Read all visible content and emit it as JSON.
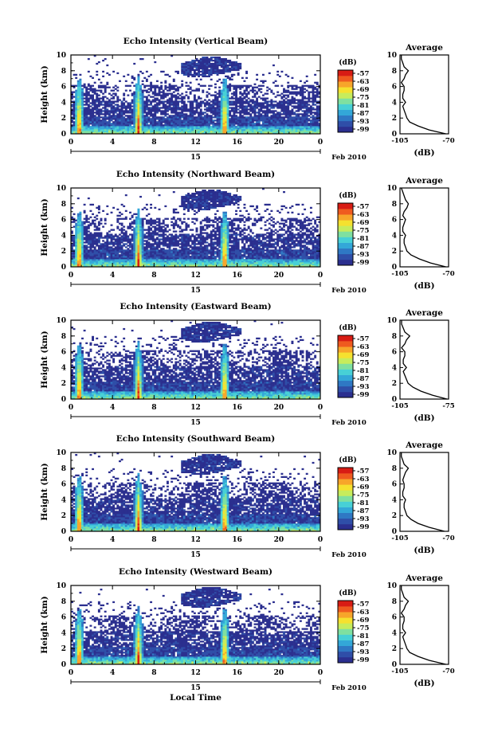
{
  "figure": {
    "xlabel": "Local Time"
  },
  "colorbar": {
    "unit": "(dB)",
    "ticks": [
      "-57",
      "-63",
      "-69",
      "-75",
      "-81",
      "-87",
      "-93",
      "-99"
    ]
  },
  "colormap": [
    "#2b2f8f",
    "#2f4ea8",
    "#2f78c4",
    "#33a7d8",
    "#47d0d6",
    "#7fe0a0",
    "#c7ec5c",
    "#f5e12f",
    "#f7a52a",
    "#ef5a1f",
    "#d81c14"
  ],
  "chart_data": [
    {
      "type": "heatmap",
      "title": "Echo Intensity (Vertical Beam)",
      "ylabel": "Height (km)",
      "xlim": [
        0,
        24
      ],
      "ylim": [
        0,
        10
      ],
      "xticks": [
        "0",
        "4",
        "8",
        "12",
        "16",
        "20",
        "0"
      ],
      "yticks": [
        "0",
        "2",
        "4",
        "6",
        "8",
        "10"
      ],
      "date_day": "15",
      "date_month": "Feb 2010",
      "colorbar_label": "(dB)",
      "color_range_db": [
        -99,
        -57
      ],
      "spikes_local_time": [
        0.8,
        6.5,
        14.8
      ],
      "average": {
        "title": "Average",
        "xlabel": "(dB)",
        "xticks": [
          "-105",
          "-70"
        ],
        "xlim": [
          -105,
          -70
        ],
        "heights_km": [
          0,
          0.5,
          1,
          1.5,
          2,
          2.5,
          3,
          3.5,
          4,
          4.5,
          5,
          5.5,
          6,
          6.5,
          7,
          7.5,
          8,
          8.5,
          9,
          9.5,
          10
        ],
        "db": [
          -72,
          -84,
          -92,
          -98,
          -100,
          -101,
          -102,
          -103,
          -101,
          -103,
          -103,
          -102,
          -102,
          -104,
          -102,
          -101,
          -99,
          -102,
          -103,
          -104,
          -104
        ]
      }
    },
    {
      "type": "heatmap",
      "title": "Echo Intensity (Northward Beam)",
      "ylabel": "Height (km)",
      "xlim": [
        0,
        24
      ],
      "ylim": [
        0,
        10
      ],
      "xticks": [
        "0",
        "4",
        "8",
        "12",
        "16",
        "20",
        "0"
      ],
      "yticks": [
        "0",
        "2",
        "4",
        "6",
        "8",
        "10"
      ],
      "date_day": "15",
      "date_month": "Feb 2010",
      "colorbar_label": "(dB)",
      "color_range_db": [
        -99,
        -57
      ],
      "spikes_local_time": [
        0.8,
        6.5,
        14.8
      ],
      "average": {
        "title": "Average",
        "xlabel": "(dB)",
        "xticks": [
          "-105",
          "-70"
        ],
        "xlim": [
          -105,
          -70
        ],
        "heights_km": [
          0,
          0.5,
          1,
          1.5,
          2,
          2.5,
          3,
          3.5,
          4,
          4.5,
          5,
          5.5,
          6,
          6.5,
          7,
          7.5,
          8,
          8.5,
          9,
          9.5,
          10
        ],
        "db": [
          -72,
          -83,
          -91,
          -97,
          -100,
          -101,
          -102,
          -102,
          -101,
          -103,
          -103,
          -102,
          -101,
          -103,
          -102,
          -100,
          -99,
          -101,
          -102,
          -103,
          -104
        ]
      }
    },
    {
      "type": "heatmap",
      "title": "Echo Intensity (Eastward Beam)",
      "ylabel": "Height (km)",
      "xlim": [
        0,
        24
      ],
      "ylim": [
        0,
        10
      ],
      "xticks": [
        "0",
        "4",
        "8",
        "12",
        "16",
        "20",
        "0"
      ],
      "yticks": [
        "0",
        "2",
        "4",
        "6",
        "8",
        "10"
      ],
      "date_day": "15",
      "date_month": "Feb 2010",
      "colorbar_label": "(dB)",
      "color_range_db": [
        -99,
        -57
      ],
      "spikes_local_time": [
        0.8,
        6.5,
        14.8
      ],
      "average": {
        "title": "Average",
        "xlabel": "(dB)",
        "xticks": [
          "-105",
          "-75"
        ],
        "xlim": [
          -105,
          -75
        ],
        "heights_km": [
          0,
          0.5,
          1,
          1.5,
          2,
          2.5,
          3,
          3.5,
          4,
          4.5,
          5,
          5.5,
          6,
          6.5,
          7,
          7.5,
          8,
          8.5,
          9,
          9.5,
          10
        ],
        "db": [
          -76,
          -85,
          -92,
          -97,
          -100,
          -101,
          -102,
          -103,
          -101,
          -103,
          -103,
          -102,
          -102,
          -104,
          -102,
          -101,
          -99,
          -102,
          -103,
          -104,
          -104
        ]
      }
    },
    {
      "type": "heatmap",
      "title": "Echo Intensity (Southward Beam)",
      "ylabel": "Height (km)",
      "xlim": [
        0,
        24
      ],
      "ylim": [
        0,
        10
      ],
      "xticks": [
        "0",
        "4",
        "8",
        "12",
        "16",
        "20",
        "0"
      ],
      "yticks": [
        "0",
        "2",
        "4",
        "6",
        "8",
        "10"
      ],
      "date_day": "15",
      "date_month": "Feb 2010",
      "colorbar_label": "(dB)",
      "color_range_db": [
        -99,
        -57
      ],
      "spikes_local_time": [
        0.8,
        6.5,
        14.8
      ],
      "average": {
        "title": "Average",
        "xlabel": "(dB)",
        "xticks": [
          "-105",
          "-70"
        ],
        "xlim": [
          -105,
          -70
        ],
        "heights_km": [
          0,
          0.5,
          1,
          1.5,
          2,
          2.5,
          3,
          3.5,
          4,
          4.5,
          5,
          5.5,
          6,
          6.5,
          7,
          7.5,
          8,
          8.5,
          9,
          9.5,
          10
        ],
        "db": [
          -73,
          -84,
          -92,
          -97,
          -100,
          -101,
          -102,
          -102,
          -101,
          -103,
          -103,
          -102,
          -102,
          -103,
          -102,
          -101,
          -99,
          -102,
          -103,
          -104,
          -104
        ]
      }
    },
    {
      "type": "heatmap",
      "title": "Echo Intensity (Westward Beam)",
      "ylabel": "Height (km)",
      "xlim": [
        0,
        24
      ],
      "ylim": [
        0,
        10
      ],
      "xticks": [
        "0",
        "4",
        "8",
        "12",
        "16",
        "20",
        "0"
      ],
      "yticks": [
        "0",
        "2",
        "4",
        "6",
        "8",
        "10"
      ],
      "date_day": "15",
      "date_month": "Feb 2010",
      "colorbar_label": "(dB)",
      "color_range_db": [
        -99,
        -57
      ],
      "spikes_local_time": [
        0.8,
        6.5,
        14.8
      ],
      "average": {
        "title": "Average",
        "xlabel": "(dB)",
        "xticks": [
          "-105",
          "-70"
        ],
        "xlim": [
          -105,
          -70
        ],
        "heights_km": [
          0,
          0.5,
          1,
          1.5,
          2,
          2.5,
          3,
          3.5,
          4,
          4.5,
          5,
          5.5,
          6,
          6.5,
          7,
          7.5,
          8,
          8.5,
          9,
          9.5,
          10
        ],
        "db": [
          -72,
          -84,
          -92,
          -98,
          -100,
          -101,
          -102,
          -103,
          -101,
          -103,
          -103,
          -102,
          -102,
          -104,
          -102,
          -101,
          -99,
          -102,
          -103,
          -104,
          -104
        ]
      }
    }
  ]
}
